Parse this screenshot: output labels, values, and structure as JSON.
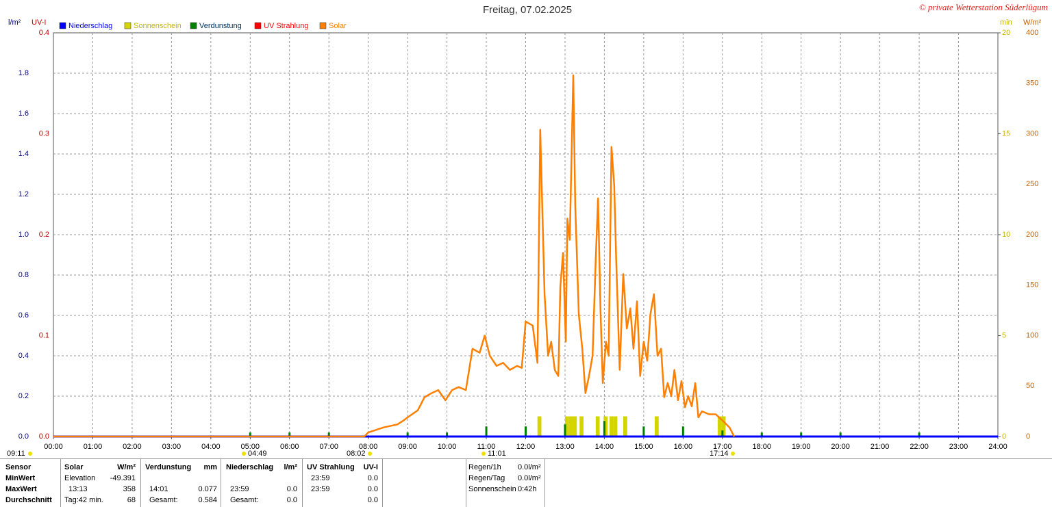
{
  "chart_data": {
    "type": "line",
    "title": "Freitag, 07.02.2025",
    "credit": "© private Wetterstation Süderlügum",
    "y_label": "l/m²",
    "uv_label": "UV-I",
    "y2_label": "min",
    "y3_label": "W/m²",
    "xlim": [
      0,
      24
    ],
    "xticks": [
      {
        "value": 0,
        "label": "00:00"
      },
      {
        "value": 1,
        "label": "01:00"
      },
      {
        "value": 2,
        "label": "02:00"
      },
      {
        "value": 3,
        "label": "03:00"
      },
      {
        "value": 4,
        "label": "04:00"
      },
      {
        "value": 5,
        "label": "05:00"
      },
      {
        "value": 6,
        "label": "06:00"
      },
      {
        "value": 7,
        "label": "07:00"
      },
      {
        "value": 8,
        "label": "08:00"
      },
      {
        "value": 9,
        "label": "09:00"
      },
      {
        "value": 10,
        "label": "10:00"
      },
      {
        "value": 11,
        "label": "11:00"
      },
      {
        "value": 12,
        "label": "12:00"
      },
      {
        "value": 13,
        "label": "13:00"
      },
      {
        "value": 14,
        "label": "14:00"
      },
      {
        "value": 15,
        "label": "15:00"
      },
      {
        "value": 16,
        "label": "16:00"
      },
      {
        "value": 17,
        "label": "17:00"
      },
      {
        "value": 18,
        "label": "18:00"
      },
      {
        "value": 19,
        "label": "19:00"
      },
      {
        "value": 20,
        "label": "20:00"
      },
      {
        "value": 21,
        "label": "21:00"
      },
      {
        "value": 22,
        "label": "22:00"
      },
      {
        "value": 23,
        "label": "23:00"
      },
      {
        "value": 24,
        "label": "24:00"
      }
    ],
    "ylim": [
      0,
      2
    ],
    "yticks": [
      {
        "value": 0,
        "label": "0.0"
      },
      0.2,
      0.4,
      0.6,
      0.8,
      {
        "value": 1,
        "label": "1.0"
      },
      1.2,
      1.4,
      1.6,
      1.8
    ],
    "uvlim": [
      0,
      0.4
    ],
    "uvticks": [
      {
        "value": 0,
        "label": "0.0"
      },
      0.1,
      0.2,
      0.3,
      0.4
    ],
    "y2lim": [
      0,
      20
    ],
    "y2ticks": [
      0,
      5,
      10,
      15,
      20
    ],
    "y3lim": [
      0,
      400
    ],
    "y3ticks": [
      0,
      50,
      100,
      150,
      200,
      250,
      300,
      350,
      400
    ],
    "grid": true,
    "series": [
      {
        "name": "Niederschlag",
        "color": "#0000ff",
        "axis": "y",
        "kind": "line",
        "x": [
          0,
          24
        ],
        "values": [
          0,
          0
        ]
      },
      {
        "name": "Sonnenschein",
        "color": "#d4d400",
        "axis": "y2",
        "kind": "bar",
        "x": [
          12.3,
          13.0,
          13.1,
          13.2,
          13.37,
          13.78,
          13.98,
          14.13,
          14.23,
          14.48,
          15.28,
          16.88,
          16.98
        ],
        "values": [
          1,
          1,
          1,
          1,
          1,
          1,
          1,
          1,
          1,
          1,
          1,
          1,
          1
        ]
      },
      {
        "name": "Verdunstung",
        "color": "#008000",
        "axis": "y",
        "kind": "bar",
        "x": [
          5,
          6,
          7,
          9,
          10,
          11,
          12,
          13,
          14,
          15,
          16,
          17,
          18,
          19,
          20,
          22
        ],
        "values": [
          0.02,
          0.02,
          0.02,
          0.02,
          0.02,
          0.05,
          0.05,
          0.06,
          0.077,
          0.05,
          0.05,
          0.03,
          0.02,
          0.02,
          0.02,
          0.02
        ]
      },
      {
        "name": "UV Strahlung",
        "color": "#ff0000",
        "axis": "uv",
        "kind": "line",
        "x": [
          0,
          24
        ],
        "values": [
          0,
          0
        ]
      },
      {
        "name": "Solar",
        "color": "#ff8000",
        "axis": "y3",
        "kind": "line",
        "x": [
          0,
          7.9,
          8.0,
          8.39,
          8.74,
          8.9,
          9.0,
          9.26,
          9.43,
          9.61,
          9.78,
          9.96,
          10.13,
          10.3,
          10.48,
          10.65,
          10.83,
          10.96,
          11.09,
          11.26,
          11.43,
          11.6,
          11.78,
          11.9,
          12.0,
          12.18,
          12.3,
          12.37,
          12.48,
          12.57,
          12.65,
          12.74,
          12.83,
          12.88,
          12.95,
          13.02,
          13.06,
          13.12,
          13.21,
          13.26,
          13.35,
          13.44,
          13.52,
          13.61,
          13.7,
          13.78,
          13.84,
          13.9,
          13.96,
          14.04,
          14.11,
          14.18,
          14.25,
          14.3,
          14.39,
          14.48,
          14.57,
          14.66,
          14.74,
          14.83,
          14.91,
          15.0,
          15.09,
          15.17,
          15.26,
          15.35,
          15.44,
          15.52,
          15.61,
          15.7,
          15.78,
          15.87,
          15.96,
          16.05,
          16.13,
          16.22,
          16.31,
          16.39,
          16.48,
          16.66,
          16.83,
          17.0,
          17.18,
          17.3
        ],
        "values": [
          0,
          0,
          4,
          9,
          12,
          16,
          19,
          26,
          39,
          43,
          46,
          36,
          46,
          49,
          46,
          87,
          83,
          100,
          80,
          70,
          73,
          66,
          70,
          68,
          114,
          110,
          73,
          304,
          141,
          80,
          94,
          66,
          60,
          148,
          182,
          94,
          216,
          195,
          358,
          229,
          121,
          87,
          43,
          60,
          80,
          175,
          236,
          127,
          53,
          94,
          80,
          287,
          249,
          175,
          66,
          161,
          107,
          127,
          87,
          134,
          60,
          94,
          75,
          121,
          141,
          80,
          87,
          39,
          53,
          40,
          66,
          36,
          55,
          29,
          40,
          30,
          53,
          19,
          25,
          22,
          22,
          16,
          9,
          0
        ]
      }
    ],
    "annotations": [
      "09:11",
      "04:49",
      "08:02",
      "11:01",
      "17:14"
    ]
  },
  "stats": {
    "header": [
      "Sensor",
      "Solar",
      "W/m²",
      "Verdunstung",
      "mm",
      "Niederschlag",
      "l/m²",
      "UV Strahlung",
      "UV-I"
    ],
    "rows": [
      {
        "label": "MinWert",
        "solar": {
          "time": "Elevation",
          "value": "-49.391"
        },
        "uv": {
          "time": "23:59",
          "value": "0.0"
        }
      },
      {
        "label": "MaxWert",
        "solar": {
          "time": "13:13",
          "value": "358"
        },
        "verdunstung": {
          "time": "14:01",
          "value": "0.077"
        },
        "niederschlag": {
          "time": "23:59",
          "value": "0.0"
        },
        "uv": {
          "time": "23:59",
          "value": "0.0"
        }
      },
      {
        "label": "Durchschnitt",
        "solar": {
          "time": "Tag:42 min.",
          "value": "68"
        },
        "verdunstung": {
          "time": "Gesamt:",
          "value": "0.584"
        },
        "niederschlag": {
          "time": "Gesamt:",
          "value": "0.0"
        },
        "uv": {
          "value": "0.0"
        }
      }
    ],
    "info": [
      {
        "label": "Regen/1h",
        "value": "0.0l/m²"
      },
      {
        "label": "Regen/Tag",
        "value": "0.0l/m²"
      },
      {
        "label": "Sonnenschein",
        "value": "0:42h"
      }
    ]
  }
}
